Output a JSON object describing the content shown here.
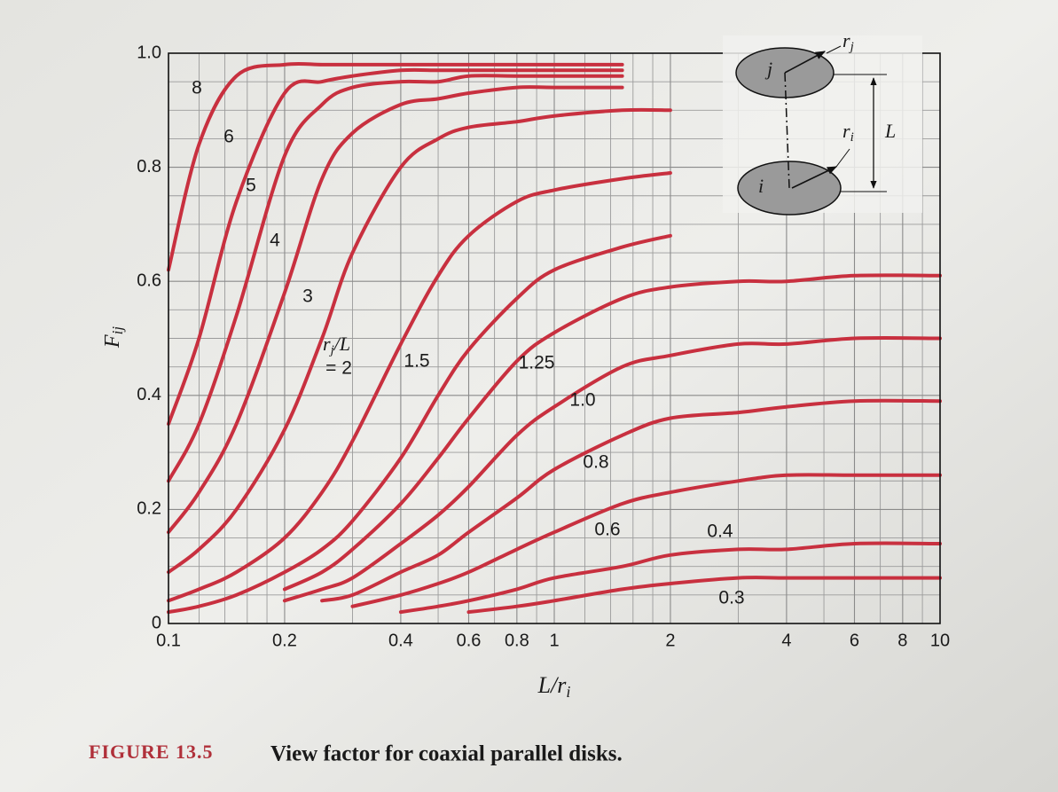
{
  "chart_data": {
    "type": "line",
    "x_scale": "log",
    "xlim": [
      0.1,
      10
    ],
    "ylim": [
      0,
      1
    ],
    "xticks": [
      0.1,
      0.2,
      0.4,
      0.6,
      0.8,
      1,
      2,
      4,
      6,
      8,
      10
    ],
    "x_minor_ticks": [
      0.12,
      0.14,
      0.16,
      0.18,
      0.3,
      0.5,
      0.7,
      0.9,
      1.2,
      1.4,
      1.6,
      1.8,
      3,
      5,
      7,
      9
    ],
    "yticks": [
      0,
      0.2,
      0.4,
      0.6,
      0.8,
      {
        "value": 1,
        "label": "1.0"
      }
    ],
    "y_minor_ticks": [
      0.05,
      0.1,
      0.15,
      0.25,
      0.3,
      0.35,
      0.45,
      0.5,
      0.55,
      0.65,
      0.7,
      0.75,
      0.85,
      0.9,
      0.95
    ],
    "grid": true,
    "xlabel": {
      "text": "L/r",
      "subscript": "i"
    },
    "ylabel": {
      "text": "F",
      "subscript": "ij"
    },
    "parameter_label": {
      "text": "r",
      "subscript": "j",
      "suffix": "/L"
    },
    "x": [
      0.1,
      0.12,
      0.15,
      0.2,
      0.25,
      0.3,
      0.4,
      0.5,
      0.6,
      0.8,
      1,
      1.5,
      2,
      3,
      4,
      6,
      10
    ],
    "series": [
      {
        "name": "8",
        "color": "#c8303f",
        "values": [
          0.62,
          0.84,
          0.96,
          0.98,
          0.98,
          0.98,
          0.98,
          0.98,
          0.98,
          0.98,
          0.98,
          0.98,
          null,
          null,
          null,
          null,
          null
        ]
      },
      {
        "name": "6",
        "color": "#c8303f",
        "values": [
          0.35,
          0.5,
          0.74,
          0.93,
          0.95,
          0.96,
          0.97,
          0.97,
          0.97,
          0.97,
          0.97,
          0.97,
          null,
          null,
          null,
          null,
          null
        ]
      },
      {
        "name": "5",
        "color": "#c8303f",
        "values": [
          0.25,
          0.35,
          0.54,
          0.82,
          0.91,
          0.94,
          0.95,
          0.95,
          0.96,
          0.96,
          0.96,
          0.96,
          null,
          null,
          null,
          null,
          null
        ]
      },
      {
        "name": "4",
        "color": "#c8303f",
        "values": [
          0.16,
          0.23,
          0.35,
          0.58,
          0.78,
          0.86,
          0.91,
          0.92,
          0.93,
          0.94,
          0.94,
          0.94,
          null,
          null,
          null,
          null,
          null
        ]
      },
      {
        "name": "3",
        "color": "#c8303f",
        "values": [
          0.09,
          0.13,
          0.2,
          0.34,
          0.5,
          0.65,
          0.8,
          0.85,
          0.87,
          0.88,
          0.89,
          0.9,
          0.9,
          null,
          null,
          null,
          null
        ]
      },
      {
        "name": "= 2",
        "color": "#c8303f",
        "values": [
          0.04,
          0.06,
          0.09,
          0.15,
          0.23,
          0.32,
          0.49,
          0.61,
          0.68,
          0.74,
          0.76,
          0.78,
          0.79,
          null,
          null,
          null,
          null
        ]
      },
      {
        "name": "1.5",
        "color": "#c8303f",
        "values": [
          0.02,
          0.03,
          0.05,
          0.09,
          0.13,
          0.18,
          0.29,
          0.4,
          0.48,
          0.57,
          0.62,
          0.66,
          0.68,
          null,
          null,
          null,
          null
        ]
      },
      {
        "name": "1.25",
        "color": "#c8303f",
        "values": [
          null,
          null,
          null,
          0.06,
          0.09,
          0.13,
          0.21,
          0.29,
          0.36,
          0.46,
          0.51,
          0.57,
          0.59,
          0.6,
          0.6,
          0.61,
          0.61
        ]
      },
      {
        "name": "1.0",
        "color": "#c8303f",
        "values": [
          null,
          null,
          null,
          0.04,
          0.06,
          0.08,
          0.14,
          0.19,
          0.24,
          0.33,
          0.38,
          0.45,
          0.47,
          0.49,
          0.49,
          0.5,
          0.5
        ]
      },
      {
        "name": "0.8",
        "color": "#c8303f",
        "values": [
          null,
          null,
          null,
          null,
          0.04,
          0.05,
          0.09,
          0.12,
          0.16,
          0.22,
          0.27,
          0.33,
          0.36,
          0.37,
          0.38,
          0.39,
          0.39
        ]
      },
      {
        "name": "0.6",
        "color": "#c8303f",
        "values": [
          null,
          null,
          null,
          null,
          null,
          0.03,
          0.05,
          0.07,
          0.09,
          0.13,
          0.16,
          0.21,
          0.23,
          0.25,
          0.26,
          0.26,
          0.26
        ]
      },
      {
        "name": "0.4",
        "color": "#c8303f",
        "values": [
          null,
          null,
          null,
          null,
          null,
          null,
          0.02,
          0.03,
          0.04,
          0.06,
          0.08,
          0.1,
          0.12,
          0.13,
          0.13,
          0.14,
          0.14
        ]
      },
      {
        "name": "0.3",
        "color": "#c8303f",
        "values": [
          null,
          null,
          null,
          null,
          null,
          null,
          null,
          null,
          0.02,
          0.03,
          0.04,
          0.06,
          0.07,
          0.08,
          0.08,
          0.08,
          0.08
        ]
      }
    ]
  },
  "diagram": {
    "upper_disk": "j",
    "lower_disk": "i",
    "upper_radius": {
      "text": "r",
      "subscript": "j"
    },
    "lower_radius": {
      "text": "r",
      "subscript": "i"
    },
    "separation": "L"
  },
  "caption": {
    "label": "FIGURE 13.5",
    "text": "View factor for coaxial parallel disks."
  }
}
